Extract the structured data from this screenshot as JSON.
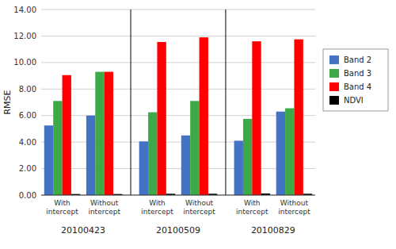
{
  "chart_data": {
    "type": "bar",
    "groups": [
      "20100423",
      "20100509",
      "20100829"
    ],
    "categories": [
      "With\nintercept",
      "Without\nintercept",
      "With\nintercept",
      "Without\nintercept",
      "With\nintercept",
      "Without\nintercept"
    ],
    "series": [
      {
        "name": "Band 2",
        "color": "#4472C4",
        "values": [
          5.25,
          6.0,
          4.05,
          4.5,
          4.1,
          6.3
        ]
      },
      {
        "name": "Band 3",
        "color": "#3DAA47",
        "values": [
          7.1,
          9.3,
          6.25,
          7.1,
          5.75,
          6.55
        ]
      },
      {
        "name": "Band 4",
        "color": "#FF0000",
        "values": [
          9.05,
          9.3,
          11.55,
          11.9,
          11.6,
          11.75
        ]
      },
      {
        "name": "NDVI",
        "color": "#000000",
        "values": [
          0.08,
          0.08,
          0.1,
          0.1,
          0.12,
          0.1
        ]
      }
    ],
    "ylabel": "RMSE",
    "ylim": [
      0,
      14.0
    ],
    "yticks": [
      {
        "value": 0.0,
        "label": "0.00"
      },
      {
        "value": 2.0,
        "label": "2.00"
      },
      {
        "value": 4.0,
        "label": "4.00"
      },
      {
        "value": 6.0,
        "label": "6.00"
      },
      {
        "value": 8.0,
        "label": "8.00"
      },
      {
        "value": 10.0,
        "label": "10.00"
      },
      {
        "value": 12.0,
        "label": "12.00"
      },
      {
        "value": 14.0,
        "label": "14.00"
      }
    ],
    "grid": true,
    "legend": "right"
  }
}
